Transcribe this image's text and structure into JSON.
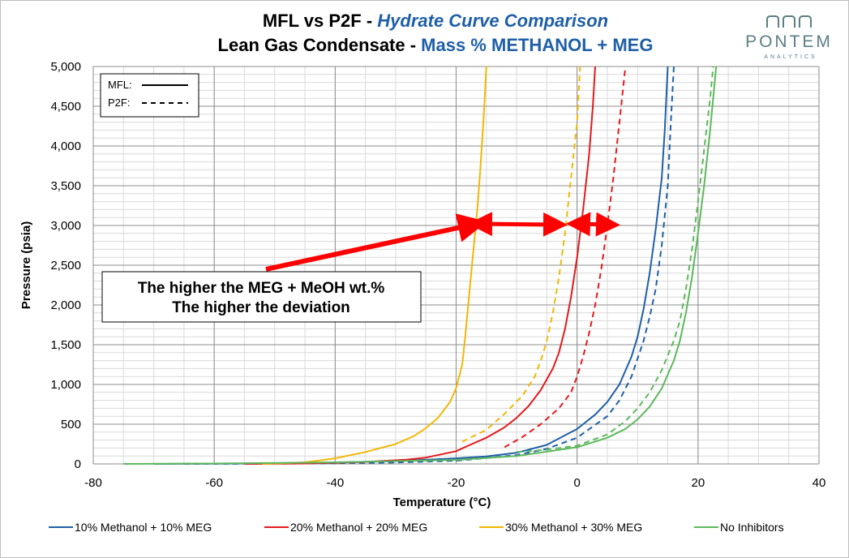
{
  "logo": {
    "name": "PONTEM",
    "subtitle": "ANALYTICS"
  },
  "chart_data": {
    "type": "line",
    "title_line1_prefix": "MFL vs P2F - ",
    "title_line1_emph": "Hydrate Curve Comparison",
    "title_line2_prefix": "Lean Gas Condensate - ",
    "title_line2_emph": "Mass % METHANOL + MEG",
    "xlabel": "Temperature (°C)",
    "ylabel": "Pressure (psia)",
    "xlim": [
      -80,
      40
    ],
    "ylim": [
      0,
      5000
    ],
    "xticks": [
      -80,
      -60,
      -40,
      -20,
      0,
      20,
      40
    ],
    "yticks": [
      0,
      500,
      1000,
      1500,
      2000,
      2500,
      3000,
      3500,
      4000,
      4500,
      5000
    ],
    "line_style_legend": [
      {
        "label": "MFL:",
        "style": "solid"
      },
      {
        "label": "P2F:",
        "style": "dashed"
      }
    ],
    "annotation": {
      "line1": "The higher the MEG + MeOH wt.%",
      "line2": "The higher the deviation"
    },
    "series": [
      {
        "name": "10% Methanol + 10% MEG",
        "color": "#1f5fa8",
        "mfl": [
          [
            -70,
            0
          ],
          [
            -60,
            3
          ],
          [
            -50,
            8
          ],
          [
            -40,
            18
          ],
          [
            -30,
            35
          ],
          [
            -20,
            70
          ],
          [
            -15,
            95
          ],
          [
            -10,
            140
          ],
          [
            -5,
            240
          ],
          [
            0,
            440
          ],
          [
            3,
            620
          ],
          [
            5,
            780
          ],
          [
            7,
            1000
          ],
          [
            9,
            1350
          ],
          [
            10,
            1600
          ],
          [
            11,
            1950
          ],
          [
            12,
            2400
          ],
          [
            13,
            2950
          ],
          [
            14,
            3600
          ],
          [
            14.5,
            4200
          ],
          [
            15,
            5000
          ]
        ],
        "p2f": [
          [
            -65,
            0
          ],
          [
            -50,
            3
          ],
          [
            -40,
            8
          ],
          [
            -30,
            18
          ],
          [
            -20,
            40
          ],
          [
            -10,
            110
          ],
          [
            -5,
            190
          ],
          [
            0,
            330
          ],
          [
            5,
            600
          ],
          [
            7,
            800
          ],
          [
            9,
            1100
          ],
          [
            11,
            1550
          ],
          [
            12,
            1850
          ],
          [
            13,
            2200
          ],
          [
            14,
            2750
          ],
          [
            15,
            3500
          ],
          [
            15.5,
            4300
          ],
          [
            16,
            5000
          ]
        ]
      },
      {
        "name": "20% Methanol + 20% MEG",
        "color": "#e31a1c",
        "mfl": [
          [
            -55,
            0
          ],
          [
            -45,
            5
          ],
          [
            -35,
            25
          ],
          [
            -28,
            55
          ],
          [
            -25,
            80
          ],
          [
            -20,
            160
          ],
          [
            -18,
            230
          ],
          [
            -15,
            330
          ],
          [
            -12,
            460
          ],
          [
            -10,
            580
          ],
          [
            -8,
            730
          ],
          [
            -6,
            930
          ],
          [
            -4,
            1200
          ],
          [
            -3,
            1400
          ],
          [
            -2,
            1700
          ],
          [
            -1,
            2100
          ],
          [
            0,
            2600
          ],
          [
            1,
            3200
          ],
          [
            2,
            3900
          ],
          [
            2.6,
            4500
          ],
          [
            3,
            5000
          ]
        ],
        "p2f": [
          [
            -12,
            210
          ],
          [
            -9,
            340
          ],
          [
            -6,
            500
          ],
          [
            -3,
            700
          ],
          [
            -1,
            900
          ],
          [
            0,
            1100
          ],
          [
            1,
            1350
          ],
          [
            2,
            1650
          ],
          [
            3,
            2000
          ],
          [
            4,
            2450
          ],
          [
            5,
            3000
          ],
          [
            6,
            3600
          ],
          [
            7,
            4300
          ],
          [
            8,
            5000
          ]
        ]
      },
      {
        "name": "30% Methanol + 30% MEG",
        "color": "#f2b705",
        "mfl": [
          [
            -52,
            0
          ],
          [
            -45,
            20
          ],
          [
            -40,
            70
          ],
          [
            -35,
            150
          ],
          [
            -30,
            250
          ],
          [
            -27,
            350
          ],
          [
            -25,
            450
          ],
          [
            -23,
            580
          ],
          [
            -21,
            780
          ],
          [
            -20,
            950
          ],
          [
            -19,
            1250
          ],
          [
            -18.5,
            1600
          ],
          [
            -18,
            2000
          ],
          [
            -17.5,
            2400
          ],
          [
            -17,
            2800
          ],
          [
            -16.5,
            3200
          ],
          [
            -16,
            3700
          ],
          [
            -15.5,
            4300
          ],
          [
            -15,
            5000
          ]
        ],
        "p2f": [
          [
            -19,
            280
          ],
          [
            -15,
            430
          ],
          [
            -12,
            630
          ],
          [
            -9,
            860
          ],
          [
            -7,
            1100
          ],
          [
            -6,
            1300
          ],
          [
            -5,
            1550
          ],
          [
            -4,
            1900
          ],
          [
            -3,
            2350
          ],
          [
            -2,
            2900
          ],
          [
            -1,
            3600
          ],
          [
            0,
            4300
          ],
          [
            0.5,
            5000
          ]
        ]
      },
      {
        "name": "No Inhibitors",
        "color": "#5cb85c",
        "mfl": [
          [
            -75,
            0
          ],
          [
            -60,
            5
          ],
          [
            -40,
            20
          ],
          [
            -20,
            50
          ],
          [
            -10,
            100
          ],
          [
            0,
            210
          ],
          [
            5,
            330
          ],
          [
            8,
            440
          ],
          [
            10,
            560
          ],
          [
            12,
            720
          ],
          [
            14,
            950
          ],
          [
            16,
            1300
          ],
          [
            17,
            1550
          ],
          [
            18,
            1900
          ],
          [
            19,
            2350
          ],
          [
            20,
            2900
          ],
          [
            21,
            3500
          ],
          [
            22,
            4200
          ],
          [
            23,
            5000
          ]
        ],
        "p2f": [
          [
            -10,
            150
          ],
          [
            -5,
            180
          ],
          [
            0,
            230
          ],
          [
            5,
            370
          ],
          [
            8,
            540
          ],
          [
            10,
            700
          ],
          [
            12,
            900
          ],
          [
            14,
            1180
          ],
          [
            16,
            1550
          ],
          [
            17,
            1800
          ],
          [
            18,
            2200
          ],
          [
            19,
            2700
          ],
          [
            20,
            3300
          ],
          [
            21,
            3950
          ],
          [
            22,
            4600
          ],
          [
            22.5,
            5000
          ]
        ]
      }
    ]
  }
}
